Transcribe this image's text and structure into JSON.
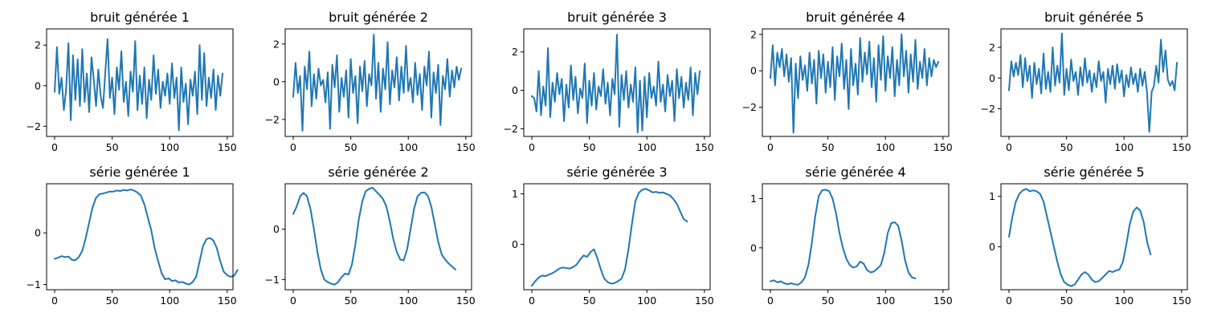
{
  "figure": {
    "line_color": "#1f77b4",
    "background": "#ffffff"
  },
  "chart_data": [
    {
      "type": "line",
      "title": "bruit générée 1",
      "xlabel": "",
      "ylabel": "",
      "xlim": [
        -7,
        155
      ],
      "ylim": [
        -2.5,
        2.8
      ],
      "xticks": [
        0,
        50,
        100,
        150
      ],
      "yticks": [
        -2,
        0,
        2
      ],
      "grid": false,
      "x_start": 0,
      "x_step": 2,
      "y": [
        -0.3,
        1.9,
        -0.4,
        0.4,
        -1.2,
        -0.2,
        2.1,
        -1.7,
        1.5,
        -0.7,
        1.3,
        -1.0,
        1.8,
        -0.8,
        0.6,
        -1.3,
        1.4,
        0.3,
        -1.0,
        0.8,
        -0.5,
        -1.1,
        0.6,
        2.3,
        -0.6,
        0.4,
        -1.4,
        0.9,
        -0.2,
        1.7,
        -0.8,
        0.2,
        -1.5,
        0.7,
        -0.3,
        2.2,
        -1.2,
        0.5,
        -0.9,
        0.9,
        -1.6,
        0.3,
        -0.7,
        1.5,
        -0.4,
        0.8,
        -1.1,
        0.2,
        -0.5,
        0.6,
        -0.9,
        1.1,
        -0.6,
        0.4,
        -2.2,
        0.9,
        -0.8,
        0.1,
        -1.9,
        0.3,
        -0.5,
        0.7,
        -1.4,
        2.0,
        -0.7,
        1.6,
        -1.0,
        0.4,
        -0.6,
        0.8,
        -1.2,
        0.5,
        -0.5,
        0.6
      ]
    },
    {
      "type": "line",
      "title": "bruit générée 2",
      "xlabel": "",
      "ylabel": "",
      "xlim": [
        -7,
        155
      ],
      "ylim": [
        -2.9,
        2.8
      ],
      "xticks": [
        0,
        50,
        100,
        150
      ],
      "yticks": [
        -2,
        0,
        2
      ],
      "grid": false,
      "x_start": 0,
      "x_step": 2,
      "y": [
        -0.8,
        1.0,
        -0.6,
        0.3,
        -2.6,
        0.8,
        -0.4,
        1.6,
        -1.3,
        0.4,
        -0.9,
        0.7,
        -0.2,
        0.1,
        -1.1,
        0.5,
        -2.5,
        0.9,
        -0.3,
        1.4,
        -1.6,
        0.2,
        -0.8,
        0.6,
        -1.9,
        1.2,
        -0.6,
        0.3,
        -2.2,
        0.8,
        -0.5,
        1.1,
        -1.3,
        0.4,
        -0.2,
        2.5,
        -0.9,
        1.0,
        -1.6,
        0.7,
        -0.4,
        2.1,
        -1.2,
        0.6,
        -0.3,
        1.3,
        -1.0,
        0.8,
        -0.6,
        1.9,
        -0.5,
        0.2,
        -1.1,
        1.0,
        -0.7,
        0.4,
        -1.5,
        0.8,
        -0.2,
        1.6,
        -1.9,
        0.5,
        -0.6,
        0.9,
        -2.3,
        0.3,
        -0.4,
        1.2,
        -0.8,
        0.6,
        -0.3,
        0.8,
        0.1,
        0.7
      ]
    },
    {
      "type": "line",
      "title": "bruit générée 3",
      "xlabel": "",
      "ylabel": "",
      "xlim": [
        -7,
        155
      ],
      "ylim": [
        -2.4,
        3.2
      ],
      "xticks": [
        0,
        50,
        100,
        150
      ],
      "yticks": [
        -2,
        0,
        2
      ],
      "grid": false,
      "x_start": 0,
      "x_step": 2,
      "y": [
        -0.3,
        -0.4,
        -1.1,
        1.0,
        -1.3,
        0.2,
        -0.8,
        2.2,
        -1.4,
        0.4,
        -0.6,
        0.9,
        -0.2,
        0.6,
        -1.6,
        0.3,
        -0.9,
        1.3,
        -0.5,
        0.7,
        -1.2,
        0.1,
        -0.4,
        1.4,
        -1.7,
        0.5,
        -0.8,
        0.9,
        -1.0,
        0.2,
        -0.3,
        1.1,
        -0.7,
        0.4,
        -1.3,
        0.6,
        -0.2,
        2.9,
        -1.9,
        0.8,
        -0.5,
        1.0,
        -0.9,
        0.3,
        -0.6,
        1.2,
        -2.2,
        0.5,
        -2.1,
        0.7,
        -1.4,
        0.9,
        -0.4,
        0.2,
        -0.8,
        1.5,
        -0.6,
        0.3,
        -1.1,
        0.8,
        -0.3,
        0.5,
        -1.6,
        1.1,
        -0.4,
        0.7,
        -0.9,
        0.4,
        -0.5,
        1.2,
        -1.3,
        0.9,
        -0.2,
        1.0
      ]
    },
    {
      "type": "line",
      "title": "bruit générée 4",
      "xlabel": "",
      "ylabel": "",
      "xlim": [
        -7,
        155
      ],
      "ylim": [
        -3.6,
        2.3
      ],
      "xticks": [
        0,
        50,
        100,
        150
      ],
      "yticks": [
        -2,
        0,
        2
      ],
      "grid": false,
      "x_start": 0,
      "x_step": 2,
      "y": [
        -0.4,
        1.4,
        -0.8,
        1.0,
        0.2,
        1.2,
        -0.3,
        0.9,
        -0.6,
        0.7,
        -3.4,
        0.4,
        -1.5,
        0.8,
        -0.5,
        0.3,
        -1.1,
        1.0,
        -0.7,
        0.6,
        -1.8,
        1.1,
        -0.4,
        0.9,
        -1.2,
        0.5,
        -0.9,
        1.3,
        -1.6,
        0.8,
        -0.3,
        1.5,
        -1.0,
        0.6,
        -2.1,
        1.2,
        -0.8,
        0.4,
        -1.3,
        1.8,
        -0.6,
        1.0,
        -0.2,
        1.6,
        -0.9,
        0.7,
        -1.7,
        1.4,
        -0.5,
        1.9,
        -1.1,
        0.8,
        -0.4,
        1.3,
        -1.4,
        0.6,
        -0.8,
        2.0,
        -0.3,
        1.1,
        -1.2,
        0.9,
        -0.6,
        1.7,
        -1.0,
        0.5,
        -0.4,
        1.2,
        -0.8,
        0.7,
        -0.3,
        0.6,
        0.2,
        0.5
      ]
    },
    {
      "type": "line",
      "title": "bruit générée 5",
      "xlabel": "",
      "ylabel": "",
      "xlim": [
        -7,
        155
      ],
      "ylim": [
        -3.8,
        3.2
      ],
      "xticks": [
        0,
        50,
        100,
        150
      ],
      "yticks": [
        -2,
        0,
        2
      ],
      "grid": false,
      "x_start": 0,
      "x_step": 2,
      "y": [
        -0.8,
        1.1,
        0.1,
        1.0,
        0.2,
        1.5,
        -0.6,
        1.3,
        -0.2,
        0.8,
        -1.3,
        1.0,
        -0.4,
        0.6,
        -1.0,
        1.6,
        -0.7,
        0.4,
        -0.9,
        2.0,
        -0.5,
        0.8,
        -0.3,
        2.9,
        -1.1,
        0.6,
        -0.8,
        1.2,
        -0.2,
        0.4,
        -1.1,
        0.7,
        -0.5,
        1.3,
        -0.3,
        0.5,
        -0.9,
        0.3,
        -0.6,
        1.1,
        -0.2,
        0.4,
        -1.6,
        0.6,
        -0.4,
        0.8,
        -0.7,
        0.9,
        -0.3,
        0.5,
        -1.2,
        0.2,
        -0.6,
        0.7,
        -0.4,
        0.3,
        -0.9,
        0.6,
        -0.5,
        0.4,
        -1.0,
        -3.5,
        -0.9,
        -0.5,
        0.8,
        -0.3,
        2.5,
        0.4,
        1.8,
        -0.1,
        -0.5,
        -0.2,
        -0.8,
        1.0
      ]
    },
    {
      "type": "line",
      "title": "série générée 1",
      "xlabel": "",
      "ylabel": "",
      "xlim": [
        -7,
        155
      ],
      "ylim": [
        -1.1,
        0.95
      ],
      "xticks": [
        0,
        50,
        100,
        150
      ],
      "yticks": [
        -1,
        0
      ],
      "grid": false,
      "x_start": 0,
      "x_step": 3,
      "y": [
        -0.5,
        -0.48,
        -0.45,
        -0.47,
        -0.46,
        -0.52,
        -0.53,
        -0.47,
        -0.35,
        -0.1,
        0.2,
        0.5,
        0.68,
        0.75,
        0.76,
        0.78,
        0.8,
        0.8,
        0.82,
        0.81,
        0.83,
        0.82,
        0.84,
        0.82,
        0.78,
        0.72,
        0.55,
        0.3,
        0.05,
        -0.3,
        -0.55,
        -0.78,
        -0.9,
        -0.88,
        -0.93,
        -0.92,
        -0.96,
        -0.95,
        -0.98,
        -1.0,
        -0.95,
        -0.85,
        -0.55,
        -0.25,
        -0.12,
        -0.1,
        -0.15,
        -0.3,
        -0.55,
        -0.75,
        -0.82,
        -0.85,
        -0.83,
        -0.72
      ]
    },
    {
      "type": "line",
      "title": "série générée 2",
      "xlabel": "",
      "ylabel": "",
      "xlim": [
        -7,
        155
      ],
      "ylim": [
        -1.2,
        0.9
      ],
      "xticks": [
        0,
        50,
        100,
        150
      ],
      "yticks": [
        -1,
        0
      ],
      "grid": false,
      "x_start": 0,
      "x_step": 3,
      "y": [
        0.3,
        0.45,
        0.65,
        0.72,
        0.65,
        0.4,
        0.0,
        -0.45,
        -0.8,
        -1.0,
        -1.05,
        -1.08,
        -1.1,
        -1.05,
        -0.95,
        -0.88,
        -0.9,
        -0.7,
        -0.3,
        0.2,
        0.55,
        0.75,
        0.8,
        0.82,
        0.75,
        0.68,
        0.6,
        0.45,
        0.15,
        -0.2,
        -0.45,
        -0.6,
        -0.62,
        -0.4,
        0.0,
        0.4,
        0.65,
        0.72,
        0.73,
        0.66,
        0.45,
        0.1,
        -0.25,
        -0.5,
        -0.6,
        -0.68,
        -0.74,
        -0.8
      ]
    },
    {
      "type": "line",
      "title": "série générée 3",
      "xlabel": "",
      "ylabel": "",
      "xlim": [
        -7,
        155
      ],
      "ylim": [
        -0.9,
        1.2
      ],
      "xticks": [
        0,
        50,
        100,
        150
      ],
      "yticks": [
        0,
        1
      ],
      "grid": false,
      "x_start": 0,
      "x_step": 3,
      "y": [
        -0.82,
        -0.73,
        -0.66,
        -0.62,
        -0.63,
        -0.6,
        -0.57,
        -0.53,
        -0.48,
        -0.46,
        -0.47,
        -0.48,
        -0.45,
        -0.4,
        -0.3,
        -0.22,
        -0.25,
        -0.15,
        -0.1,
        -0.28,
        -0.5,
        -0.68,
        -0.75,
        -0.78,
        -0.77,
        -0.73,
        -0.68,
        -0.5,
        -0.1,
        0.4,
        0.85,
        1.02,
        1.08,
        1.1,
        1.07,
        1.03,
        1.04,
        1.02,
        1.03,
        1.0,
        0.97,
        0.9,
        0.8,
        0.65,
        0.5,
        0.45
      ]
    },
    {
      "type": "line",
      "title": "série générée 4",
      "xlabel": "",
      "ylabel": "",
      "xlim": [
        -7,
        155
      ],
      "ylim": [
        -0.85,
        1.3
      ],
      "xticks": [
        0,
        50,
        100,
        150
      ],
      "yticks": [
        0,
        1
      ],
      "grid": false,
      "x_start": 0,
      "x_step": 3,
      "y": [
        -0.68,
        -0.66,
        -0.7,
        -0.68,
        -0.72,
        -0.74,
        -0.72,
        -0.74,
        -0.75,
        -0.7,
        -0.6,
        -0.35,
        0.1,
        0.65,
        1.05,
        1.17,
        1.18,
        1.15,
        1.0,
        0.7,
        0.3,
        0.0,
        -0.22,
        -0.35,
        -0.4,
        -0.38,
        -0.28,
        -0.32,
        -0.45,
        -0.5,
        -0.48,
        -0.42,
        -0.35,
        -0.1,
        0.3,
        0.5,
        0.52,
        0.45,
        0.15,
        -0.25,
        -0.5,
        -0.6,
        -0.62
      ]
    },
    {
      "type": "line",
      "title": "série générée 5",
      "xlabel": "",
      "ylabel": "",
      "xlim": [
        -7,
        155
      ],
      "ylim": [
        -0.85,
        1.25
      ],
      "xticks": [
        0,
        50,
        100,
        150
      ],
      "yticks": [
        0,
        1
      ],
      "grid": false,
      "x_start": 0,
      "x_step": 3,
      "y": [
        0.2,
        0.6,
        0.9,
        1.05,
        1.12,
        1.15,
        1.1,
        1.12,
        1.1,
        1.05,
        0.9,
        0.6,
        0.3,
        0.0,
        -0.3,
        -0.55,
        -0.7,
        -0.75,
        -0.78,
        -0.75,
        -0.65,
        -0.55,
        -0.5,
        -0.55,
        -0.65,
        -0.7,
        -0.68,
        -0.62,
        -0.55,
        -0.48,
        -0.5,
        -0.47,
        -0.45,
        -0.3,
        0.05,
        0.45,
        0.7,
        0.78,
        0.72,
        0.5,
        0.1,
        -0.15
      ]
    }
  ]
}
